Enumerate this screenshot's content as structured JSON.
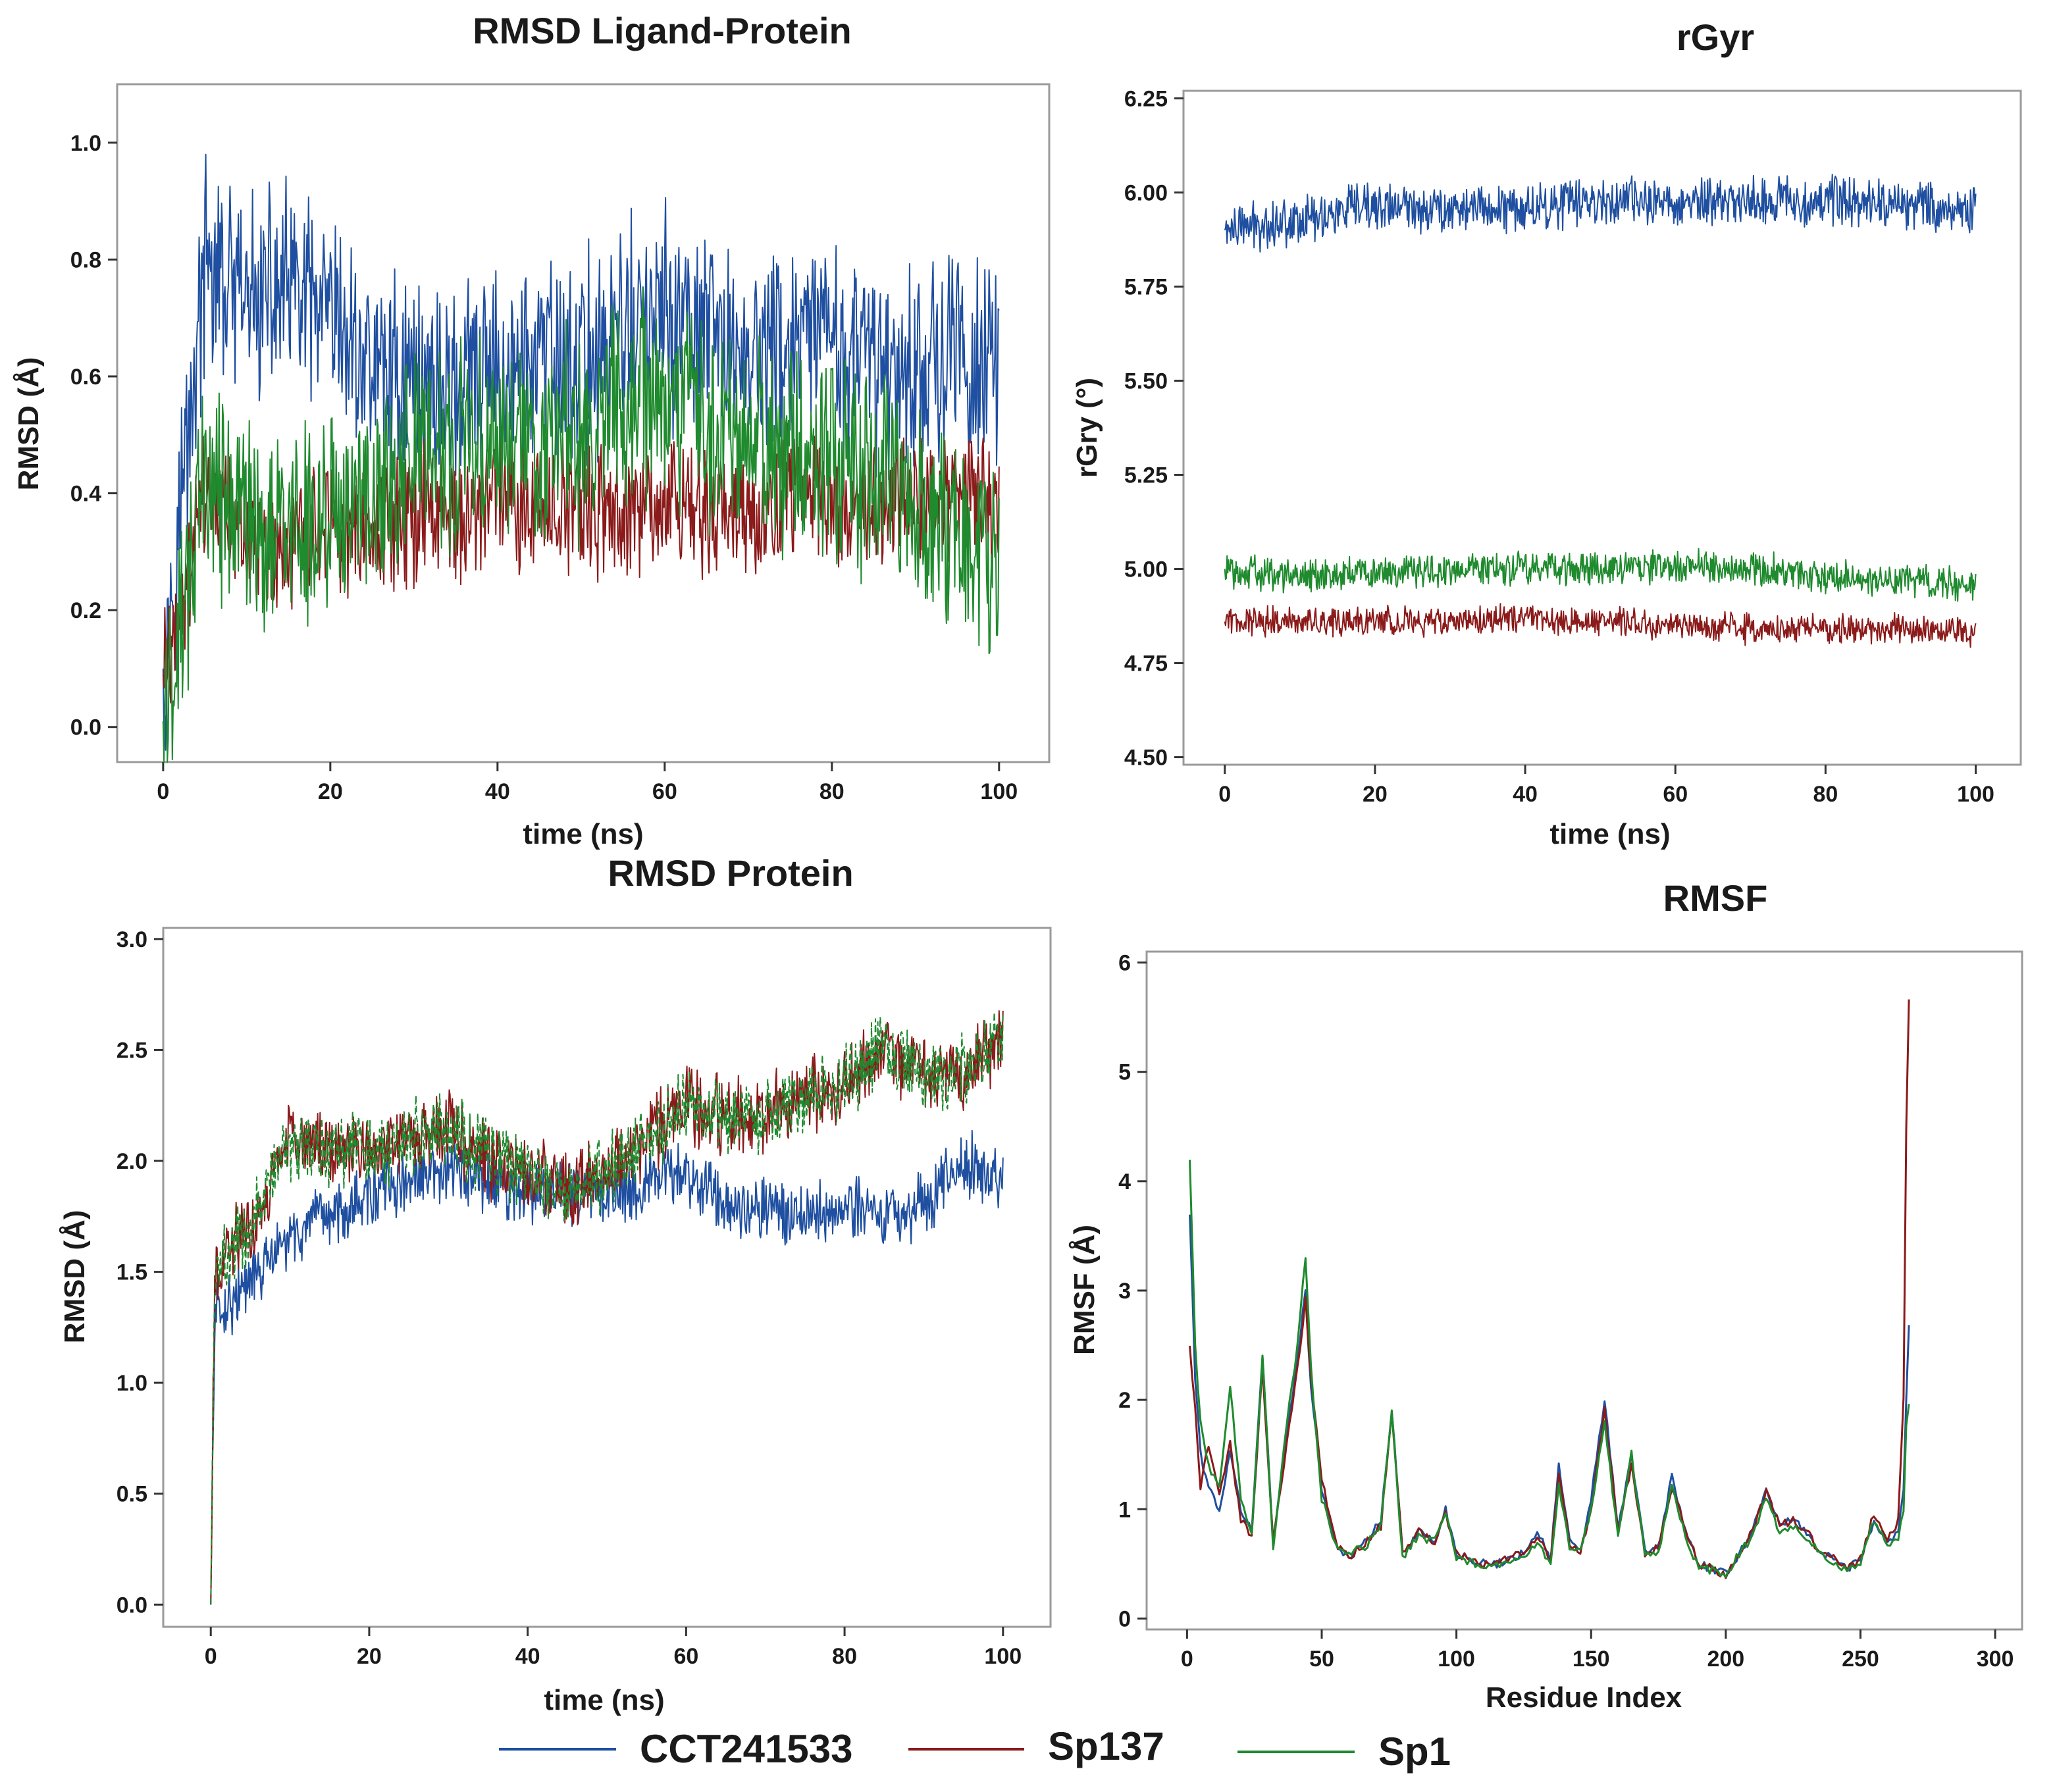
{
  "colors": {
    "CCT241533": "#1f4fa0",
    "Sp137": "#8b1a1a",
    "Sp1": "#1f8a2e",
    "frame": "#9a9a9a",
    "axis": "#333333"
  },
  "legend": [
    {
      "name": "CCT241533",
      "color": "#1f4fa0"
    },
    {
      "name": "Sp137",
      "color": "#8b1a1a"
    },
    {
      "name": "Sp1",
      "color": "#1f8a2e"
    }
  ],
  "chart_data": [
    {
      "id": "rmsd-ligand",
      "type": "line",
      "title": "RMSD Ligand-Protein",
      "xlabel": "time (ns)",
      "ylabel": "RMSD (Å)",
      "xlim": [
        -5.5,
        106
      ],
      "ylim": [
        -0.06,
        1.1
      ],
      "xticks": [
        0,
        20,
        40,
        60,
        80,
        100
      ],
      "yticks": [
        0.0,
        0.2,
        0.4,
        0.6,
        0.8,
        1.0
      ],
      "ytick_decimals": 1,
      "series": [
        {
          "name": "CCT241533",
          "x": [
            0,
            5,
            10,
            15,
            20,
            25,
            30,
            35,
            40,
            45,
            50,
            55,
            60,
            65,
            70,
            75,
            80,
            85,
            90,
            95,
            100
          ],
          "values": [
            0.1,
            0.78,
            0.72,
            0.75,
            0.68,
            0.62,
            0.6,
            0.58,
            0.6,
            0.62,
            0.62,
            0.68,
            0.7,
            0.66,
            0.64,
            0.64,
            0.66,
            0.62,
            0.62,
            0.64,
            0.6
          ],
          "noise": 0.14
        },
        {
          "name": "Sp137",
          "x": [
            0,
            5,
            10,
            15,
            20,
            25,
            30,
            35,
            40,
            45,
            50,
            55,
            60,
            65,
            70,
            75,
            80,
            85,
            90,
            95,
            100
          ],
          "values": [
            0.09,
            0.38,
            0.32,
            0.3,
            0.32,
            0.34,
            0.36,
            0.36,
            0.38,
            0.36,
            0.38,
            0.36,
            0.38,
            0.36,
            0.38,
            0.4,
            0.4,
            0.38,
            0.4,
            0.4,
            0.38
          ],
          "noise": 0.09
        },
        {
          "name": "Sp1",
          "x": [
            0,
            5,
            10,
            15,
            20,
            25,
            30,
            35,
            40,
            45,
            50,
            55,
            60,
            65,
            70,
            75,
            80,
            85,
            90,
            95,
            100
          ],
          "values": [
            0.01,
            0.42,
            0.36,
            0.32,
            0.36,
            0.4,
            0.46,
            0.48,
            0.5,
            0.48,
            0.5,
            0.56,
            0.56,
            0.52,
            0.5,
            0.46,
            0.44,
            0.42,
            0.38,
            0.34,
            0.3
          ],
          "noise": 0.14
        }
      ]
    },
    {
      "id": "rgyr",
      "type": "line",
      "title": "rGyr",
      "xlabel": "time (ns)",
      "ylabel": "rGry (°)",
      "xlim": [
        -5.5,
        106
      ],
      "ylim": [
        4.48,
        6.27
      ],
      "xticks": [
        0,
        20,
        40,
        60,
        80,
        100
      ],
      "yticks": [
        4.5,
        4.75,
        5.0,
        5.25,
        5.5,
        5.75,
        6.0,
        6.25
      ],
      "ytick_decimals": 2,
      "series": [
        {
          "name": "CCT241533",
          "x": [
            0,
            10,
            20,
            30,
            40,
            50,
            60,
            70,
            80,
            90,
            100
          ],
          "values": [
            5.9,
            5.93,
            5.96,
            5.96,
            5.96,
            5.98,
            5.97,
            5.98,
            5.98,
            5.97,
            5.95
          ],
          "noise": 0.05
        },
        {
          "name": "Sp137",
          "x": [
            0,
            10,
            20,
            30,
            40,
            50,
            60,
            70,
            80,
            90,
            100
          ],
          "values": [
            4.86,
            4.86,
            4.86,
            4.86,
            4.87,
            4.86,
            4.85,
            4.84,
            4.84,
            4.84,
            4.83
          ],
          "noise": 0.03
        },
        {
          "name": "Sp1",
          "x": [
            0,
            10,
            20,
            30,
            40,
            50,
            60,
            70,
            80,
            90,
            100
          ],
          "values": [
            5.0,
            4.98,
            4.99,
            5.0,
            5.0,
            5.0,
            5.01,
            5.0,
            4.98,
            4.97,
            4.96
          ],
          "noise": 0.035
        }
      ]
    },
    {
      "id": "rmsd-protein",
      "type": "line",
      "title": "RMSD Protein",
      "xlabel": "time (ns)",
      "ylabel": "RMSD (Å)",
      "xlim": [
        -6,
        106
      ],
      "ylim": [
        -0.1,
        3.05
      ],
      "xticks": [
        0,
        20,
        40,
        60,
        80,
        100
      ],
      "yticks": [
        0.0,
        0.5,
        1.0,
        1.5,
        2.0,
        2.5,
        3.0
      ],
      "ytick_decimals": 1,
      "series": [
        {
          "name": "CCT241533",
          "x": [
            0,
            0.5,
            2,
            5,
            10,
            15,
            20,
            25,
            30,
            35,
            40,
            45,
            50,
            55,
            60,
            65,
            70,
            75,
            80,
            85,
            90,
            95,
            100
          ],
          "values": [
            0.0,
            1.3,
            1.35,
            1.45,
            1.65,
            1.75,
            1.85,
            1.9,
            1.95,
            1.9,
            1.85,
            1.85,
            1.85,
            1.9,
            1.95,
            1.8,
            1.8,
            1.75,
            1.8,
            1.75,
            1.8,
            2.0,
            1.9
          ],
          "noise": 0.11
        },
        {
          "name": "Sp137",
          "x": [
            0,
            0.5,
            2,
            5,
            10,
            15,
            20,
            25,
            30,
            35,
            40,
            45,
            50,
            55,
            60,
            65,
            70,
            75,
            80,
            85,
            90,
            95,
            100
          ],
          "values": [
            0.0,
            1.45,
            1.6,
            1.7,
            2.1,
            2.05,
            2.05,
            2.1,
            2.15,
            2.0,
            1.95,
            1.85,
            1.95,
            2.1,
            2.25,
            2.2,
            2.2,
            2.3,
            2.35,
            2.5,
            2.4,
            2.4,
            2.55
          ],
          "noise": 0.13,
          "dashed": true
        },
        {
          "name": "Sp1",
          "x": [
            0,
            0.5,
            2,
            5,
            10,
            15,
            20,
            25,
            30,
            35,
            40,
            45,
            50,
            55,
            60,
            65,
            70,
            75,
            80,
            85,
            90,
            95,
            100
          ],
          "values": [
            0.0,
            1.45,
            1.6,
            1.7,
            2.1,
            2.05,
            2.05,
            2.1,
            2.15,
            2.0,
            1.95,
            1.85,
            1.95,
            2.1,
            2.25,
            2.2,
            2.2,
            2.3,
            2.35,
            2.5,
            2.4,
            2.4,
            2.55
          ],
          "noise": 0.13,
          "dashed": true
        }
      ]
    },
    {
      "id": "rmsf",
      "type": "line",
      "title": "RMSF",
      "xlabel": "Residue Index",
      "ylabel": "RMSF (Å)",
      "xlim": [
        -15,
        310
      ],
      "ylim": [
        -0.1,
        6.1
      ],
      "xticks": [
        0,
        50,
        100,
        150,
        200,
        250,
        300
      ],
      "yticks": [
        0,
        1,
        2,
        3,
        4,
        5,
        6
      ],
      "ytick_decimals": 0,
      "series": [
        {
          "name": "CCT241533",
          "x": [
            1,
            3,
            5,
            8,
            12,
            16,
            20,
            24,
            28,
            32,
            36,
            40,
            44,
            46,
            50,
            55,
            60,
            66,
            72,
            76,
            80,
            86,
            92,
            96,
            100,
            105,
            110,
            115,
            120,
            125,
            130,
            135,
            138,
            142,
            146,
            150,
            155,
            160,
            165,
            170,
            175,
            180,
            185,
            190,
            195,
            200,
            205,
            210,
            215,
            220,
            225,
            230,
            235,
            240,
            245,
            250,
            255,
            260,
            264,
            266,
            267,
            268
          ],
          "values": [
            3.7,
            2.2,
            1.5,
            1.2,
            1.0,
            1.5,
            1.0,
            0.8,
            2.4,
            0.7,
            1.5,
            2.2,
            3.0,
            2.1,
            1.2,
            0.7,
            0.55,
            0.7,
            0.9,
            1.9,
            0.6,
            0.8,
            0.7,
            1.0,
            0.6,
            0.55,
            0.5,
            0.5,
            0.55,
            0.6,
            0.8,
            0.55,
            1.4,
            0.7,
            0.6,
            1.1,
            2.0,
            0.8,
            1.5,
            0.6,
            0.65,
            1.3,
            0.8,
            0.5,
            0.45,
            0.4,
            0.6,
            0.8,
            1.2,
            0.85,
            0.9,
            0.8,
            0.6,
            0.55,
            0.45,
            0.55,
            0.9,
            0.7,
            0.8,
            1.2,
            2.0,
            2.7
          ],
          "noise": 0.04
        },
        {
          "name": "Sp137",
          "x": [
            1,
            3,
            5,
            8,
            12,
            16,
            20,
            24,
            28,
            32,
            36,
            40,
            44,
            46,
            50,
            55,
            60,
            66,
            72,
            76,
            80,
            86,
            92,
            96,
            100,
            105,
            110,
            115,
            120,
            125,
            130,
            135,
            138,
            142,
            146,
            150,
            155,
            160,
            165,
            170,
            175,
            180,
            185,
            190,
            195,
            200,
            205,
            210,
            215,
            220,
            225,
            230,
            235,
            240,
            245,
            250,
            255,
            260,
            264,
            266,
            267,
            268
          ],
          "values": [
            2.5,
            1.9,
            1.2,
            1.6,
            1.1,
            1.6,
            0.9,
            0.75,
            2.3,
            0.7,
            1.4,
            2.1,
            2.9,
            2.2,
            1.3,
            0.7,
            0.55,
            0.7,
            0.85,
            1.85,
            0.6,
            0.8,
            0.7,
            0.95,
            0.6,
            0.55,
            0.5,
            0.5,
            0.55,
            0.6,
            0.75,
            0.55,
            1.3,
            0.7,
            0.6,
            1.0,
            1.9,
            0.8,
            1.4,
            0.6,
            0.65,
            1.2,
            0.8,
            0.5,
            0.45,
            0.4,
            0.6,
            0.8,
            1.15,
            0.85,
            0.9,
            0.8,
            0.6,
            0.55,
            0.45,
            0.55,
            0.95,
            0.7,
            0.9,
            2.0,
            4.5,
            5.65
          ],
          "noise": 0.04
        },
        {
          "name": "Sp1",
          "x": [
            1,
            3,
            5,
            8,
            12,
            16,
            20,
            24,
            28,
            32,
            36,
            40,
            44,
            46,
            50,
            55,
            60,
            66,
            72,
            76,
            80,
            86,
            92,
            96,
            100,
            105,
            110,
            115,
            120,
            125,
            130,
            135,
            138,
            142,
            146,
            150,
            155,
            160,
            165,
            170,
            175,
            180,
            185,
            190,
            195,
            200,
            205,
            210,
            215,
            220,
            225,
            230,
            235,
            240,
            245,
            250,
            255,
            260,
            264,
            266,
            267,
            268
          ],
          "values": [
            4.2,
            2.5,
            1.8,
            1.4,
            1.2,
            2.1,
            1.1,
            0.75,
            2.4,
            0.65,
            1.6,
            2.3,
            3.3,
            2.3,
            1.1,
            0.7,
            0.6,
            0.65,
            0.85,
            1.9,
            0.55,
            0.75,
            0.7,
            1.0,
            0.55,
            0.5,
            0.5,
            0.5,
            0.5,
            0.55,
            0.7,
            0.5,
            1.2,
            0.65,
            0.6,
            1.0,
            1.8,
            0.75,
            1.5,
            0.6,
            0.6,
            1.2,
            0.75,
            0.45,
            0.45,
            0.4,
            0.6,
            0.75,
            1.1,
            0.8,
            0.85,
            0.75,
            0.6,
            0.5,
            0.45,
            0.5,
            0.9,
            0.65,
            0.75,
            1.0,
            1.8,
            2.0
          ],
          "noise": 0.04
        }
      ]
    }
  ]
}
